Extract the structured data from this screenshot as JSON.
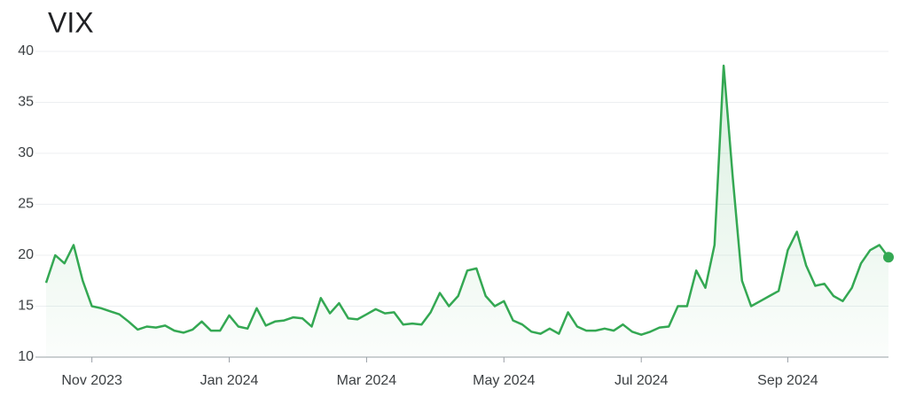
{
  "chart_data": {
    "type": "line",
    "title": "VIX",
    "categories": [
      null,
      null,
      null,
      null,
      null,
      "Nov 2023",
      null,
      null,
      null,
      null,
      null,
      null,
      null,
      null,
      null,
      null,
      null,
      null,
      null,
      null,
      "Jan 2024",
      null,
      null,
      null,
      null,
      null,
      null,
      null,
      null,
      null,
      null,
      null,
      null,
      null,
      null,
      "Mar 2024",
      null,
      null,
      null,
      null,
      null,
      null,
      null,
      null,
      null,
      null,
      null,
      null,
      null,
      null,
      "May 2024",
      null,
      null,
      null,
      null,
      null,
      null,
      null,
      null,
      null,
      null,
      null,
      null,
      null,
      null,
      "Jul 2024",
      null,
      null,
      null,
      null,
      null,
      null,
      null,
      null,
      null,
      null,
      null,
      null,
      null,
      null,
      null,
      "Sep 2024",
      null,
      null,
      null,
      null,
      null,
      null,
      null,
      null,
      null,
      null,
      null
    ],
    "series": [
      {
        "name": "VIX",
        "color": "#34a853",
        "values": [
          17.3,
          20,
          19.2,
          21,
          17.5,
          15,
          14.8,
          14.5,
          14.2,
          13.5,
          12.7,
          13,
          12.9,
          13.1,
          12.6,
          12.4,
          12.7,
          13.5,
          12.6,
          12.6,
          14.1,
          13,
          12.8,
          14.8,
          13.1,
          13.5,
          13.6,
          13.9,
          13.8,
          13,
          15.8,
          14.3,
          15.3,
          13.8,
          13.7,
          14.2,
          14.7,
          14.3,
          14.4,
          13.2,
          13.3,
          13.2,
          14.4,
          16.3,
          15,
          16,
          18.5,
          18.7,
          16,
          15,
          15.5,
          13.6,
          13.2,
          12.5,
          12.3,
          12.8,
          12.3,
          14.4,
          13,
          12.6,
          12.6,
          12.8,
          12.6,
          13.2,
          12.5,
          12.2,
          12.5,
          12.9,
          13,
          15,
          15,
          18.5,
          16.8,
          21,
          38.6,
          27.5,
          17.5,
          15,
          15.5,
          16,
          16.5,
          20.5,
          22.3,
          19,
          17,
          17.2,
          16,
          15.5,
          16.8,
          19.2,
          20.5,
          21,
          19.8
        ]
      }
    ],
    "ylim": [
      10,
      40
    ],
    "yticks": [
      10,
      15,
      20,
      25,
      30,
      35,
      40
    ],
    "grid": true
  }
}
